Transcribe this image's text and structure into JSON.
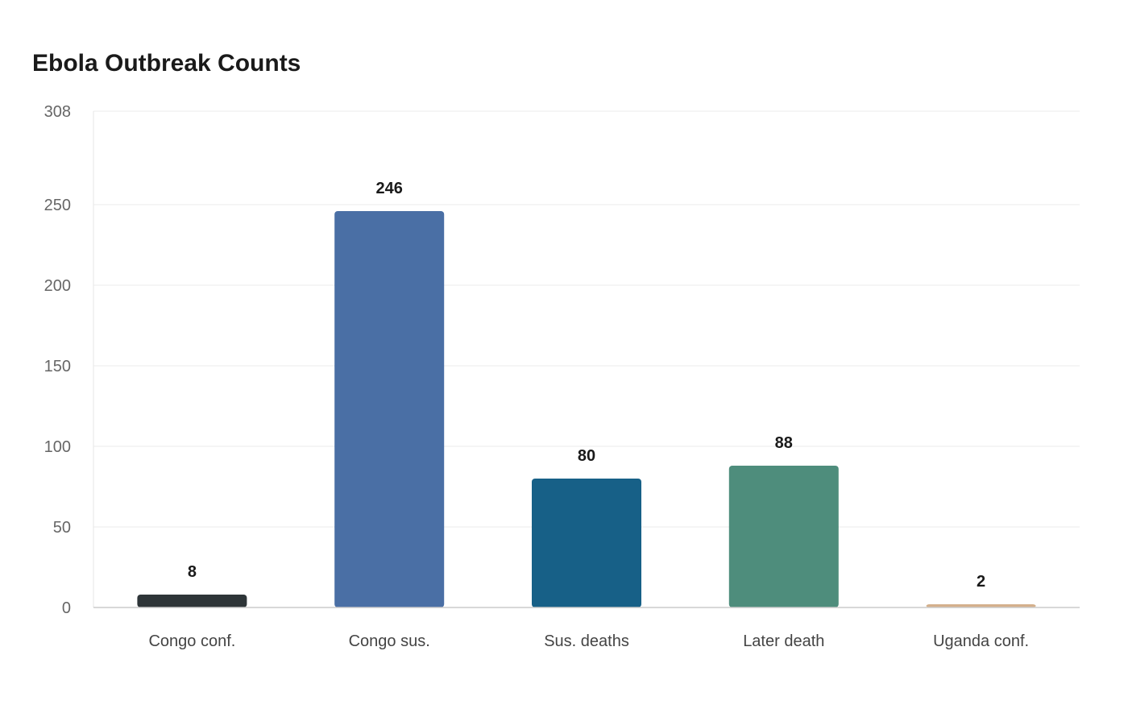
{
  "chart_data": {
    "type": "bar",
    "title": "Ebola Outbreak Counts",
    "xlabel": "",
    "ylabel": "",
    "categories": [
      "Congo conf.",
      "Congo sus.",
      "Sus. deaths",
      "Later death",
      "Uganda conf."
    ],
    "values": [
      8,
      246,
      80,
      88,
      2
    ],
    "colors": [
      "#2e3538",
      "#4a6fa5",
      "#176087",
      "#4e8d7c",
      "#d4b08c"
    ],
    "ylim": [
      0,
      308
    ],
    "yticks": [
      0,
      50,
      100,
      150,
      200,
      250,
      308
    ],
    "grid": true,
    "legend": "none"
  }
}
